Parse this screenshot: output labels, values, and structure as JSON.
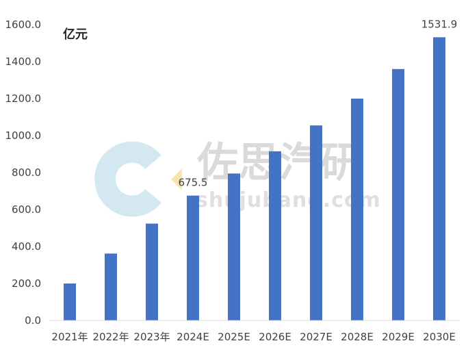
{
  "chart_data": {
    "type": "bar",
    "unit_label": "亿元",
    "categories": [
      "2021年",
      "2022年",
      "2023年",
      "2024E",
      "2025E",
      "2026E",
      "2027E",
      "2028E",
      "2029E",
      "2030E"
    ],
    "values": [
      200,
      362,
      524,
      675.5,
      795,
      915,
      1055,
      1200,
      1360,
      1531.9
    ],
    "data_labels": [
      {
        "index": 3,
        "text": "675.5"
      },
      {
        "index": 9,
        "text": "1531.9"
      }
    ],
    "y_ticks": [
      "0.0",
      "200.0",
      "400.0",
      "600.0",
      "800.0",
      "1000.0",
      "1200.0",
      "1400.0",
      "1600.0"
    ],
    "ylim": [
      0,
      1600
    ],
    "bar_color": "#4472C4",
    "grid": false
  },
  "watermark": {
    "text": "佐思汽研",
    "subtext": "shujubang.com"
  }
}
